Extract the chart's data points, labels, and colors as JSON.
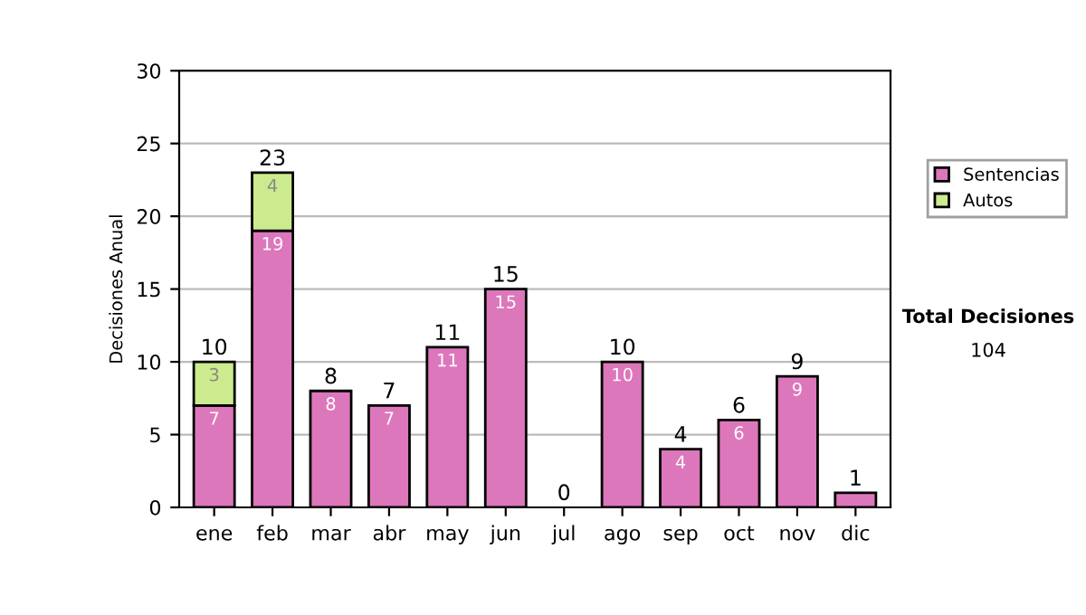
{
  "chart_data": {
    "type": "bar",
    "stacked": true,
    "ylabel": "Decisiones Anual",
    "categories": [
      "ene",
      "feb",
      "mar",
      "abr",
      "may",
      "jun",
      "jul",
      "ago",
      "sep",
      "oct",
      "nov",
      "dic"
    ],
    "series": [
      {
        "name": "Sentencias",
        "color": "#dd77bb",
        "values": [
          7,
          19,
          8,
          7,
          11,
          15,
          0,
          10,
          4,
          6,
          9,
          1
        ],
        "value_labels": [
          "7",
          "19",
          "8",
          "7",
          "11",
          "15",
          null,
          "10",
          "4",
          "6",
          "9",
          null
        ]
      },
      {
        "name": "Autos",
        "color": "#cceb8e",
        "values": [
          3,
          4,
          0,
          0,
          0,
          0,
          0,
          0,
          0,
          0,
          0,
          0
        ],
        "value_labels": [
          "3",
          "4",
          null,
          null,
          null,
          null,
          null,
          null,
          null,
          null,
          null,
          null
        ]
      }
    ],
    "totals": [
      "10",
      "23",
      "8",
      "7",
      "11",
      "15",
      "0",
      "10",
      "4",
      "6",
      "9",
      "1"
    ],
    "ylim": [
      0,
      30
    ],
    "yticks": [
      0,
      5,
      10,
      15,
      20,
      25,
      30
    ],
    "grid": "y",
    "legend": "right",
    "annotations": [
      "Total Decisiones",
      "104"
    ]
  }
}
